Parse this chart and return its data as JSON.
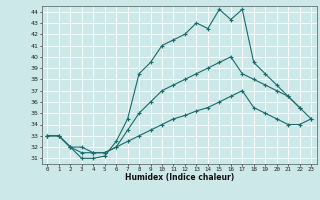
{
  "xlabel": "Humidex (Indice chaleur)",
  "bg_color": "#cce8e8",
  "grid_color": "#b0d4d4",
  "line_color": "#1a6b6b",
  "ylim": [
    31,
    44
  ],
  "xlim": [
    -0.5,
    23.5
  ],
  "yticks": [
    31,
    32,
    33,
    34,
    35,
    36,
    37,
    38,
    39,
    40,
    41,
    42,
    43,
    44
  ],
  "xticks": [
    0,
    1,
    2,
    3,
    4,
    5,
    6,
    7,
    8,
    9,
    10,
    11,
    12,
    13,
    14,
    15,
    16,
    17,
    18,
    19,
    20,
    21,
    22,
    23
  ],
  "line1_x": [
    0,
    1,
    2,
    3,
    4,
    5,
    6,
    7,
    8,
    9,
    10,
    11,
    12,
    13,
    14,
    15,
    16,
    17,
    18,
    19,
    20,
    21,
    22
  ],
  "line1_y": [
    33.0,
    33.0,
    32.0,
    31.0,
    31.0,
    31.2,
    32.5,
    34.5,
    38.5,
    39.5,
    41.0,
    41.5,
    42.0,
    43.0,
    42.5,
    44.2,
    43.3,
    44.2,
    39.5,
    38.5,
    37.5,
    36.5,
    35.5
  ],
  "line2_x": [
    0,
    1,
    2,
    3,
    4,
    5,
    6,
    7,
    8,
    9,
    10,
    11,
    12,
    13,
    14,
    15,
    16,
    17,
    18,
    19,
    20,
    21,
    22,
    23
  ],
  "line2_y": [
    33.0,
    33.0,
    32.0,
    32.0,
    31.5,
    31.5,
    32.0,
    33.5,
    35.0,
    36.0,
    37.0,
    37.5,
    38.0,
    38.5,
    39.0,
    39.5,
    40.0,
    38.5,
    38.0,
    37.5,
    37.0,
    36.5,
    35.5,
    34.5
  ],
  "line3_x": [
    0,
    1,
    2,
    3,
    4,
    5,
    6,
    7,
    8,
    9,
    10,
    11,
    12,
    13,
    14,
    15,
    16,
    17,
    18,
    19,
    20,
    21,
    22,
    23
  ],
  "line3_y": [
    33.0,
    33.0,
    32.0,
    31.5,
    31.5,
    31.5,
    32.0,
    32.5,
    33.0,
    33.5,
    34.0,
    34.5,
    34.8,
    35.2,
    35.5,
    36.0,
    36.5,
    37.0,
    35.5,
    35.0,
    34.5,
    34.0,
    34.0,
    34.5
  ]
}
